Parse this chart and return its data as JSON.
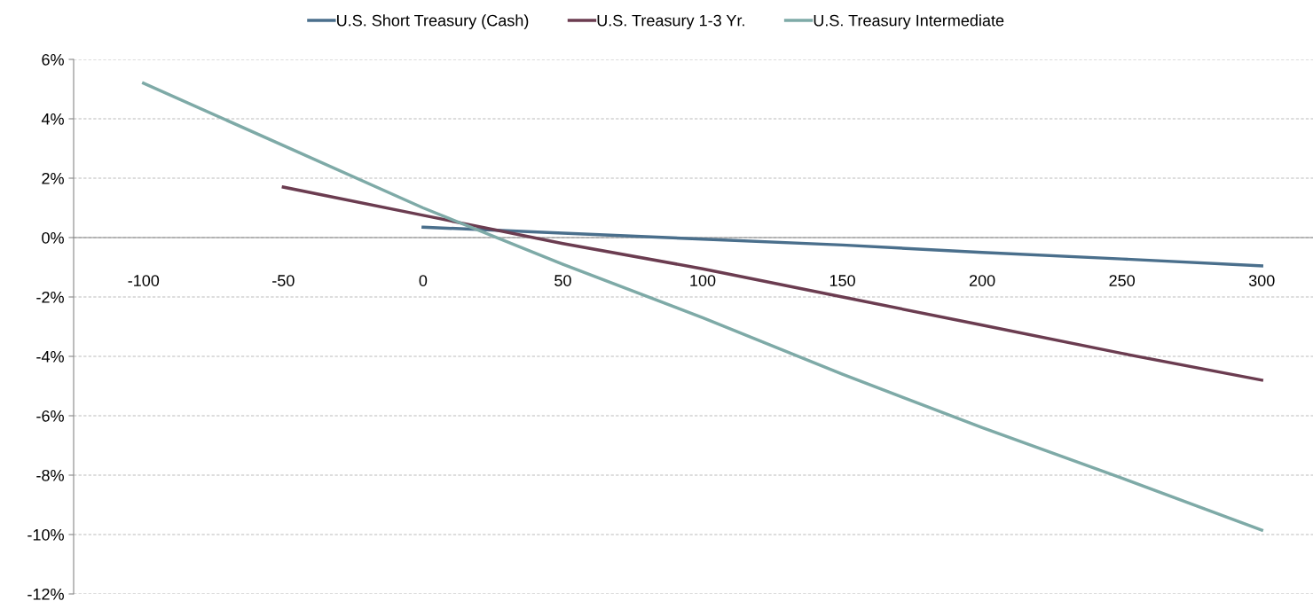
{
  "chart_data": {
    "type": "line",
    "categories": [
      "-100",
      "-50",
      "0",
      "50",
      "100",
      "150",
      "200",
      "250",
      "300"
    ],
    "series": [
      {
        "name": "U.S. Short Treasury (Cash)",
        "color": "#4a6f8c",
        "values": [
          null,
          null,
          0.35,
          0.15,
          -0.05,
          -0.25,
          -0.5,
          -0.72,
          -0.95
        ]
      },
      {
        "name": "U.S. Treasury 1-3 Yr.",
        "color": "#6b3c50",
        "values": [
          null,
          1.7,
          0.75,
          -0.2,
          -1.05,
          -2.0,
          -2.95,
          -3.9,
          -4.8
        ]
      },
      {
        "name": "U.S. Treasury Intermediate",
        "color": "#7eaaa7",
        "values": [
          5.2,
          3.1,
          1.0,
          -0.9,
          -2.7,
          -4.6,
          -6.4,
          -8.1,
          -9.85
        ]
      }
    ],
    "ylim": [
      -12,
      6
    ],
    "yticks": [
      {
        "value": -12,
        "label": "-12%"
      },
      {
        "value": -10,
        "label": "-10%"
      },
      {
        "value": -8,
        "label": "-8%"
      },
      {
        "value": -6,
        "label": "-6%"
      },
      {
        "value": -4,
        "label": "-4%"
      },
      {
        "value": -2,
        "label": "-2%"
      },
      {
        "value": 0,
        "label": "0%"
      },
      {
        "value": 2,
        "label": "2%"
      },
      {
        "value": 4,
        "label": "4%"
      },
      {
        "value": 6,
        "label": "6%"
      }
    ],
    "grid": "y",
    "legend": "top",
    "marker": "none",
    "line_style": "solid"
  }
}
